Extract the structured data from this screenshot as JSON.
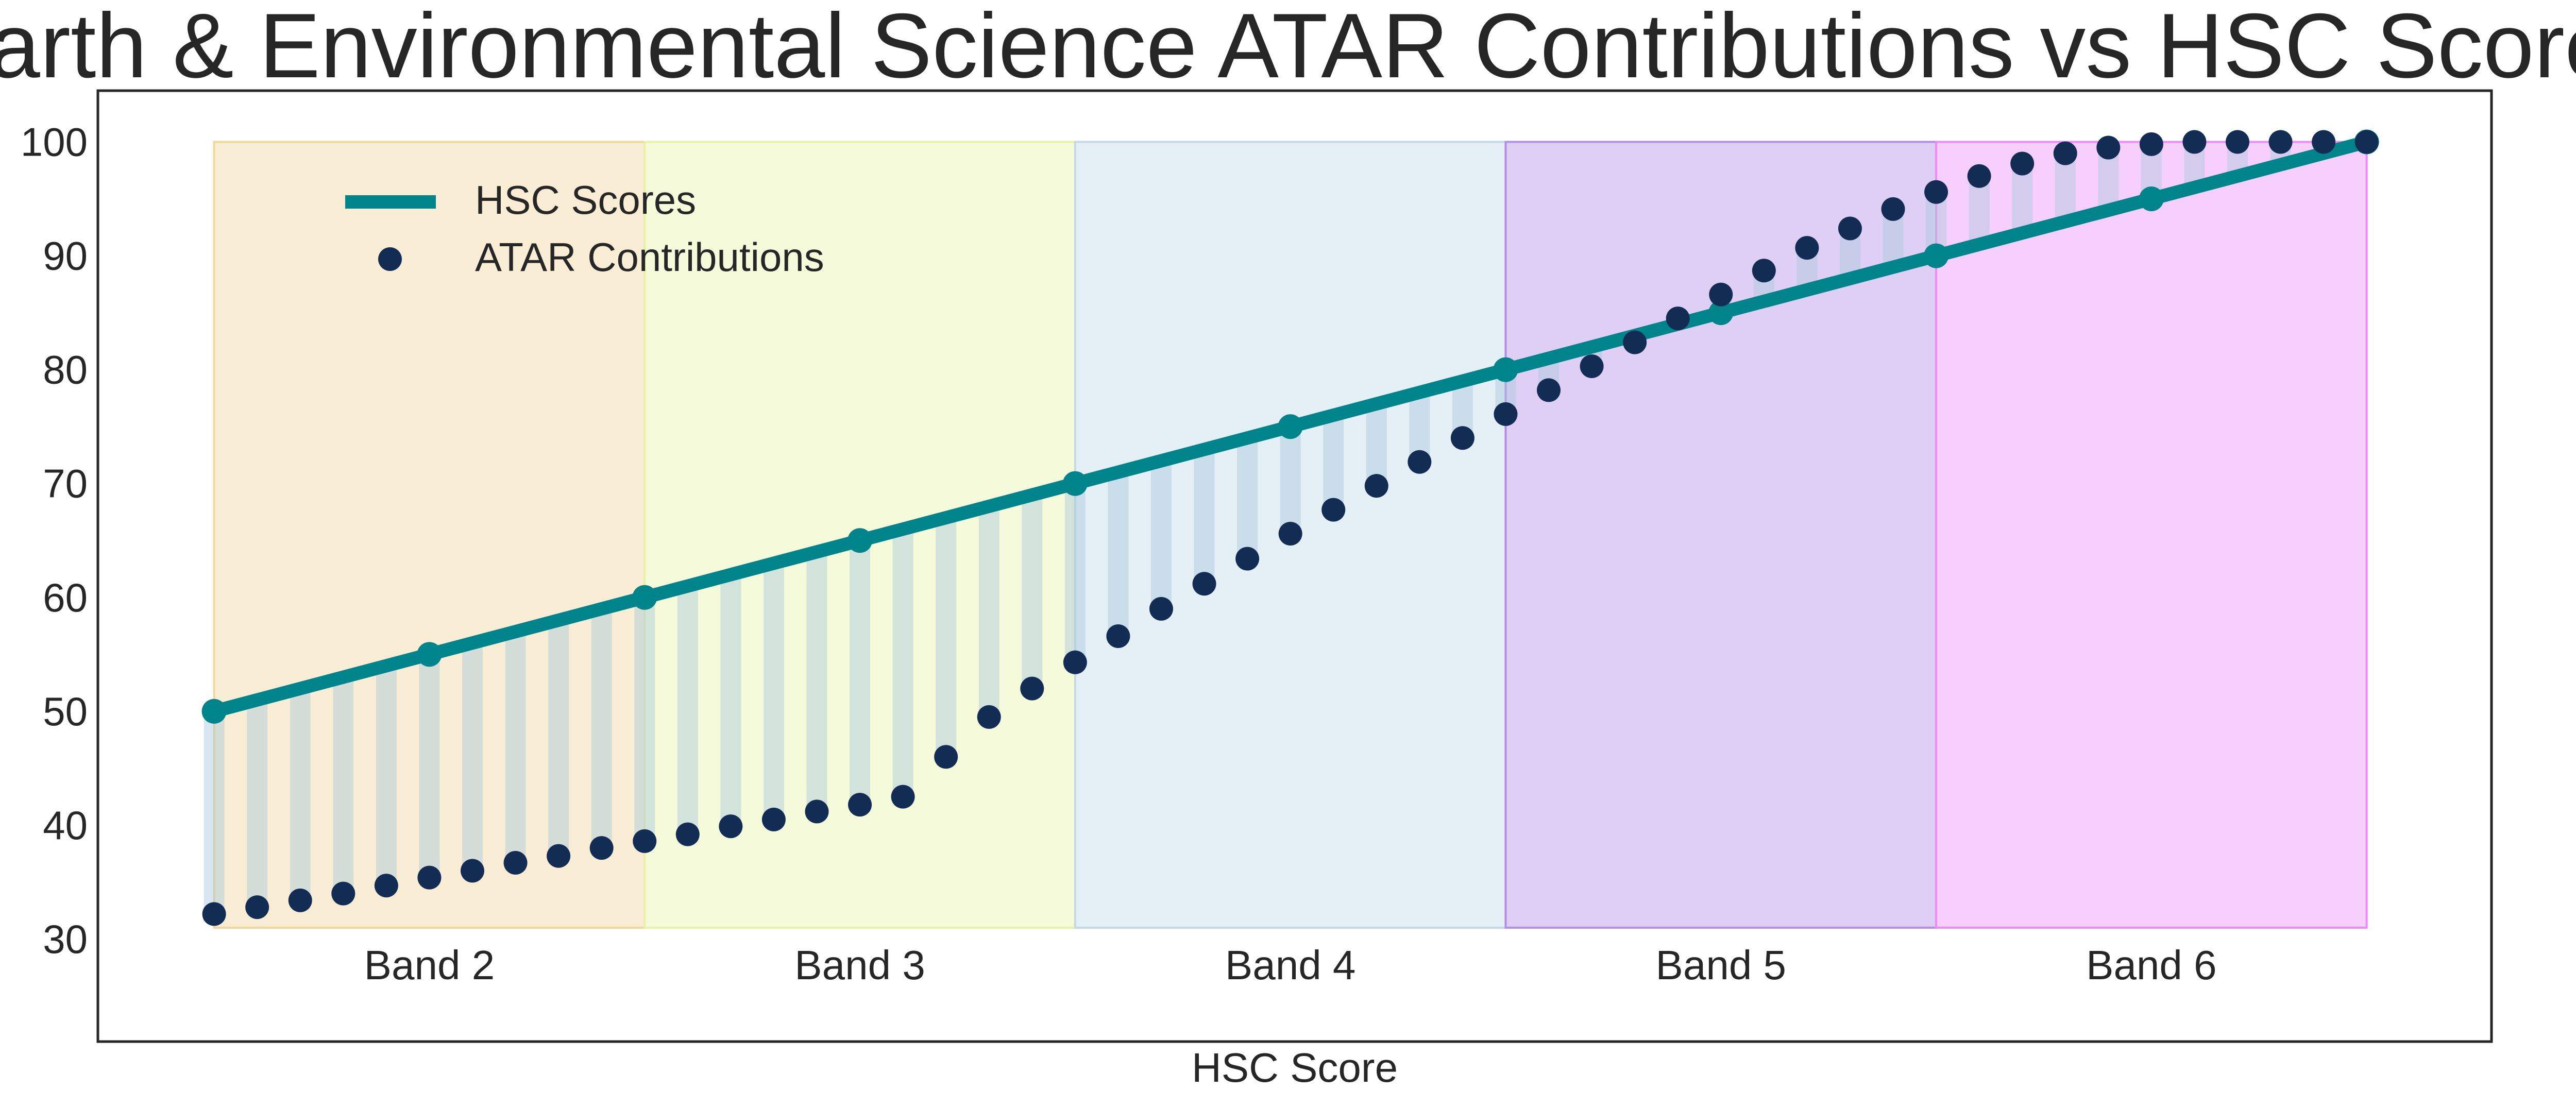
{
  "chart_data": {
    "type": "line",
    "title": "Earth & Environmental Science ATAR Contributions vs HSC Scores",
    "xlabel": "HSC Score",
    "ylabel": "",
    "ylim": [
      21,
      104.5
    ],
    "xlim": [
      47.3,
      102.9
    ],
    "yticks": [
      30,
      40,
      50,
      60,
      70,
      80,
      90,
      100
    ],
    "grid": false,
    "legend_position": "top-left",
    "bands": [
      {
        "label": "Band 2",
        "x0": 50,
        "x1": 60,
        "color": "#f1d79a"
      },
      {
        "label": "Band 3",
        "x0": 60,
        "x1": 70,
        "color": "#e8f3a8"
      },
      {
        "label": "Band 4",
        "x0": 70,
        "x1": 80,
        "color": "#c2d9ea"
      },
      {
        "label": "Band 5",
        "x0": 80,
        "x1": 90,
        "color": "#b48de6"
      },
      {
        "label": "Band 6",
        "x0": 90,
        "x1": 100,
        "color": "#ec8cf7"
      }
    ],
    "series": [
      {
        "name": "HSC Scores",
        "kind": "line",
        "color": "#00848c",
        "x": [
          50,
          55,
          60,
          65,
          70,
          75,
          80,
          85,
          90,
          95,
          100
        ],
        "y": [
          50,
          55,
          60,
          65,
          70,
          75,
          80,
          85,
          90,
          95,
          100
        ]
      },
      {
        "name": "ATAR Contributions",
        "kind": "scatter",
        "color": "#132c54",
        "x": [
          50,
          51,
          52,
          53,
          54,
          55,
          56,
          57,
          58,
          59,
          60,
          61,
          62,
          63,
          64,
          65,
          66,
          67,
          68,
          69,
          70,
          71,
          72,
          73,
          74,
          75,
          76,
          77,
          78,
          79,
          80,
          81,
          82,
          83,
          84,
          85,
          86,
          87,
          88,
          89,
          90,
          91,
          92,
          93,
          94,
          95,
          96,
          97,
          98,
          99,
          100
        ],
        "y": [
          32.2,
          32.8,
          33.4,
          34.0,
          34.7,
          35.4,
          36.0,
          36.7,
          37.3,
          38.0,
          38.6,
          39.2,
          39.9,
          40.5,
          41.2,
          41.8,
          42.5,
          46.0,
          49.5,
          52.0,
          54.3,
          56.6,
          59.0,
          61.2,
          63.4,
          65.6,
          67.7,
          69.8,
          71.9,
          74.0,
          76.1,
          78.2,
          80.3,
          82.4,
          84.5,
          86.6,
          88.7,
          90.7,
          92.4,
          94.1,
          95.6,
          97.0,
          98.1,
          99.0,
          99.5,
          99.8,
          100.0,
          100.0,
          100.0,
          100.0,
          100.0
        ]
      }
    ]
  }
}
